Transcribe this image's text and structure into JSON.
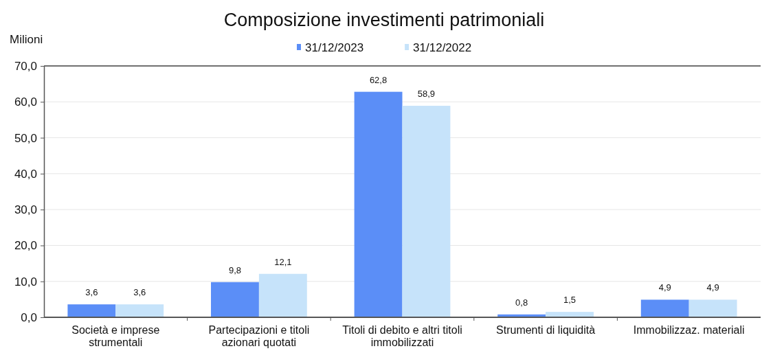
{
  "chart_data": {
    "type": "bar",
    "title": "Composizione investimenti patrimoniali",
    "ylabel": "Milioni",
    "categories": [
      "Società e imprese strumentali",
      "Partecipazioni e titoli azionari quotati",
      "Titoli di debito e altri titoli immobilizzati",
      "Strumenti di liquidità",
      "Immobilizzaz. materiali"
    ],
    "series": [
      {
        "name": "31/12/2023",
        "color": "#5b8ef7",
        "values": [
          3.6,
          9.8,
          62.8,
          0.8,
          4.9
        ],
        "value_labels": [
          "3,6",
          "9,8",
          "62,8",
          "0,8",
          "4,9"
        ]
      },
      {
        "name": "31/12/2022",
        "color": "#c6e3fa",
        "values": [
          3.6,
          12.1,
          58.9,
          1.5,
          4.9
        ],
        "value_labels": [
          "3,6",
          "12,1",
          "58,9",
          "1,5",
          "4,9"
        ]
      }
    ],
    "ylim": [
      0,
      70
    ],
    "yticks": [
      {
        "value": 0,
        "label": "0,0"
      },
      {
        "value": 10,
        "label": "10,0"
      },
      {
        "value": 20,
        "label": "20,0"
      },
      {
        "value": 30,
        "label": "30,0"
      },
      {
        "value": 40,
        "label": "40,0"
      },
      {
        "value": 50,
        "label": "50,0"
      },
      {
        "value": 60,
        "label": "60,0"
      },
      {
        "value": 70,
        "label": "70,0"
      }
    ],
    "grid": "y",
    "legend": "top"
  }
}
